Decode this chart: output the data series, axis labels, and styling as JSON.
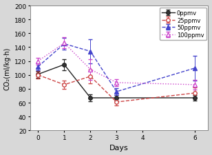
{
  "title": "",
  "xlabel": "Days",
  "ylabel": "CO₂(ml/kg·h)",
  "xlim": [
    -0.3,
    6.5
  ],
  "ylim": [
    20,
    200
  ],
  "yticks": [
    20,
    40,
    60,
    80,
    100,
    120,
    140,
    160,
    180,
    200
  ],
  "xticks": [
    0,
    1,
    2,
    3,
    4,
    6
  ],
  "days": [
    0,
    1,
    2,
    3,
    6
  ],
  "series": [
    {
      "label": "0ppmv",
      "color": "#222222",
      "linestyle": "-",
      "marker": "o",
      "markerfacecolor": "#333333",
      "markeredgecolor": "#222222",
      "markersize": 4,
      "linewidth": 1.0,
      "values": [
        101,
        115,
        67,
        67,
        67
      ],
      "yerr": [
        5,
        8,
        5,
        4,
        4
      ]
    },
    {
      "label": "25ppmv",
      "color": "#cc4444",
      "linestyle": "--",
      "marker": "o",
      "markerfacecolor": "white",
      "markeredgecolor": "#cc4444",
      "markersize": 4,
      "linewidth": 1.0,
      "values": [
        100,
        86,
        98,
        61,
        74
      ],
      "yerr": [
        5,
        6,
        10,
        5,
        8
      ]
    },
    {
      "label": "50ppmv",
      "color": "#4444cc",
      "linestyle": "--",
      "marker": "^",
      "markerfacecolor": "#4444cc",
      "markeredgecolor": "#4444cc",
      "markersize": 5,
      "linewidth": 1.0,
      "values": [
        112,
        145,
        134,
        76,
        110
      ],
      "yerr": [
        5,
        8,
        17,
        5,
        18
      ]
    },
    {
      "label": "100ppmv",
      "color": "#cc44cc",
      "linestyle": ":",
      "marker": "^",
      "markerfacecolor": "white",
      "markeredgecolor": "#cc44cc",
      "markersize": 5,
      "linewidth": 1.0,
      "values": [
        120,
        146,
        108,
        89,
        86
      ],
      "yerr": [
        5,
        8,
        15,
        5,
        7
      ]
    }
  ],
  "legend_loc": "upper right",
  "figsize": [
    3.08,
    2.26
  ],
  "dpi": 100,
  "fig_bg_color": "#d8d8d8",
  "ax_bg_color": "#ffffff"
}
